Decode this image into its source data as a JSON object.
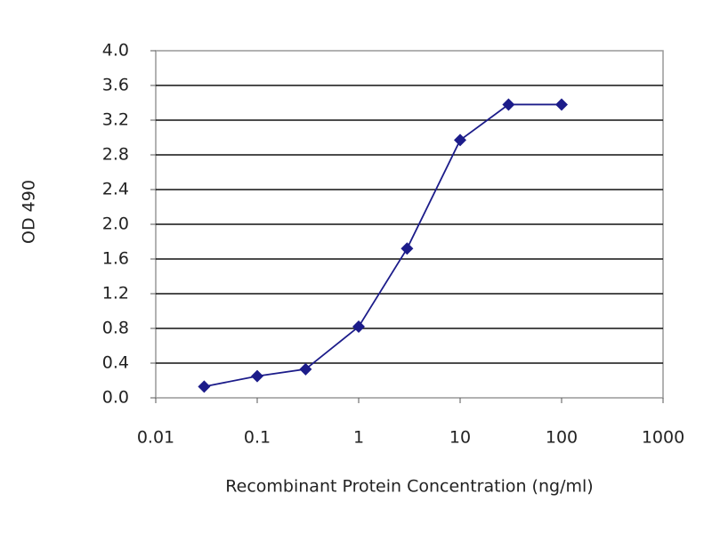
{
  "chart_data": {
    "type": "line",
    "xlabel": "Recombinant Protein Concentration (ng/ml)",
    "ylabel": "OD 490",
    "x": [
      0.03,
      0.1,
      0.3,
      1,
      3,
      10,
      30,
      100
    ],
    "values": [
      0.13,
      0.25,
      0.33,
      0.82,
      1.72,
      2.97,
      3.38,
      3.38
    ],
    "color": "#1c1c8a",
    "xscale": "log",
    "xlim": [
      0.01,
      1000
    ],
    "xticks": [
      0.01,
      0.1,
      1,
      10,
      100,
      1000
    ],
    "ylim": [
      0,
      4
    ],
    "yticks": [
      {
        "value": 0,
        "label": "0.0"
      },
      0.4,
      0.8,
      1.2,
      1.6,
      {
        "value": 2,
        "label": "2.0"
      },
      2.4,
      2.8,
      3.2,
      3.6,
      {
        "value": 4,
        "label": "4.0"
      }
    ],
    "grid": true
  }
}
